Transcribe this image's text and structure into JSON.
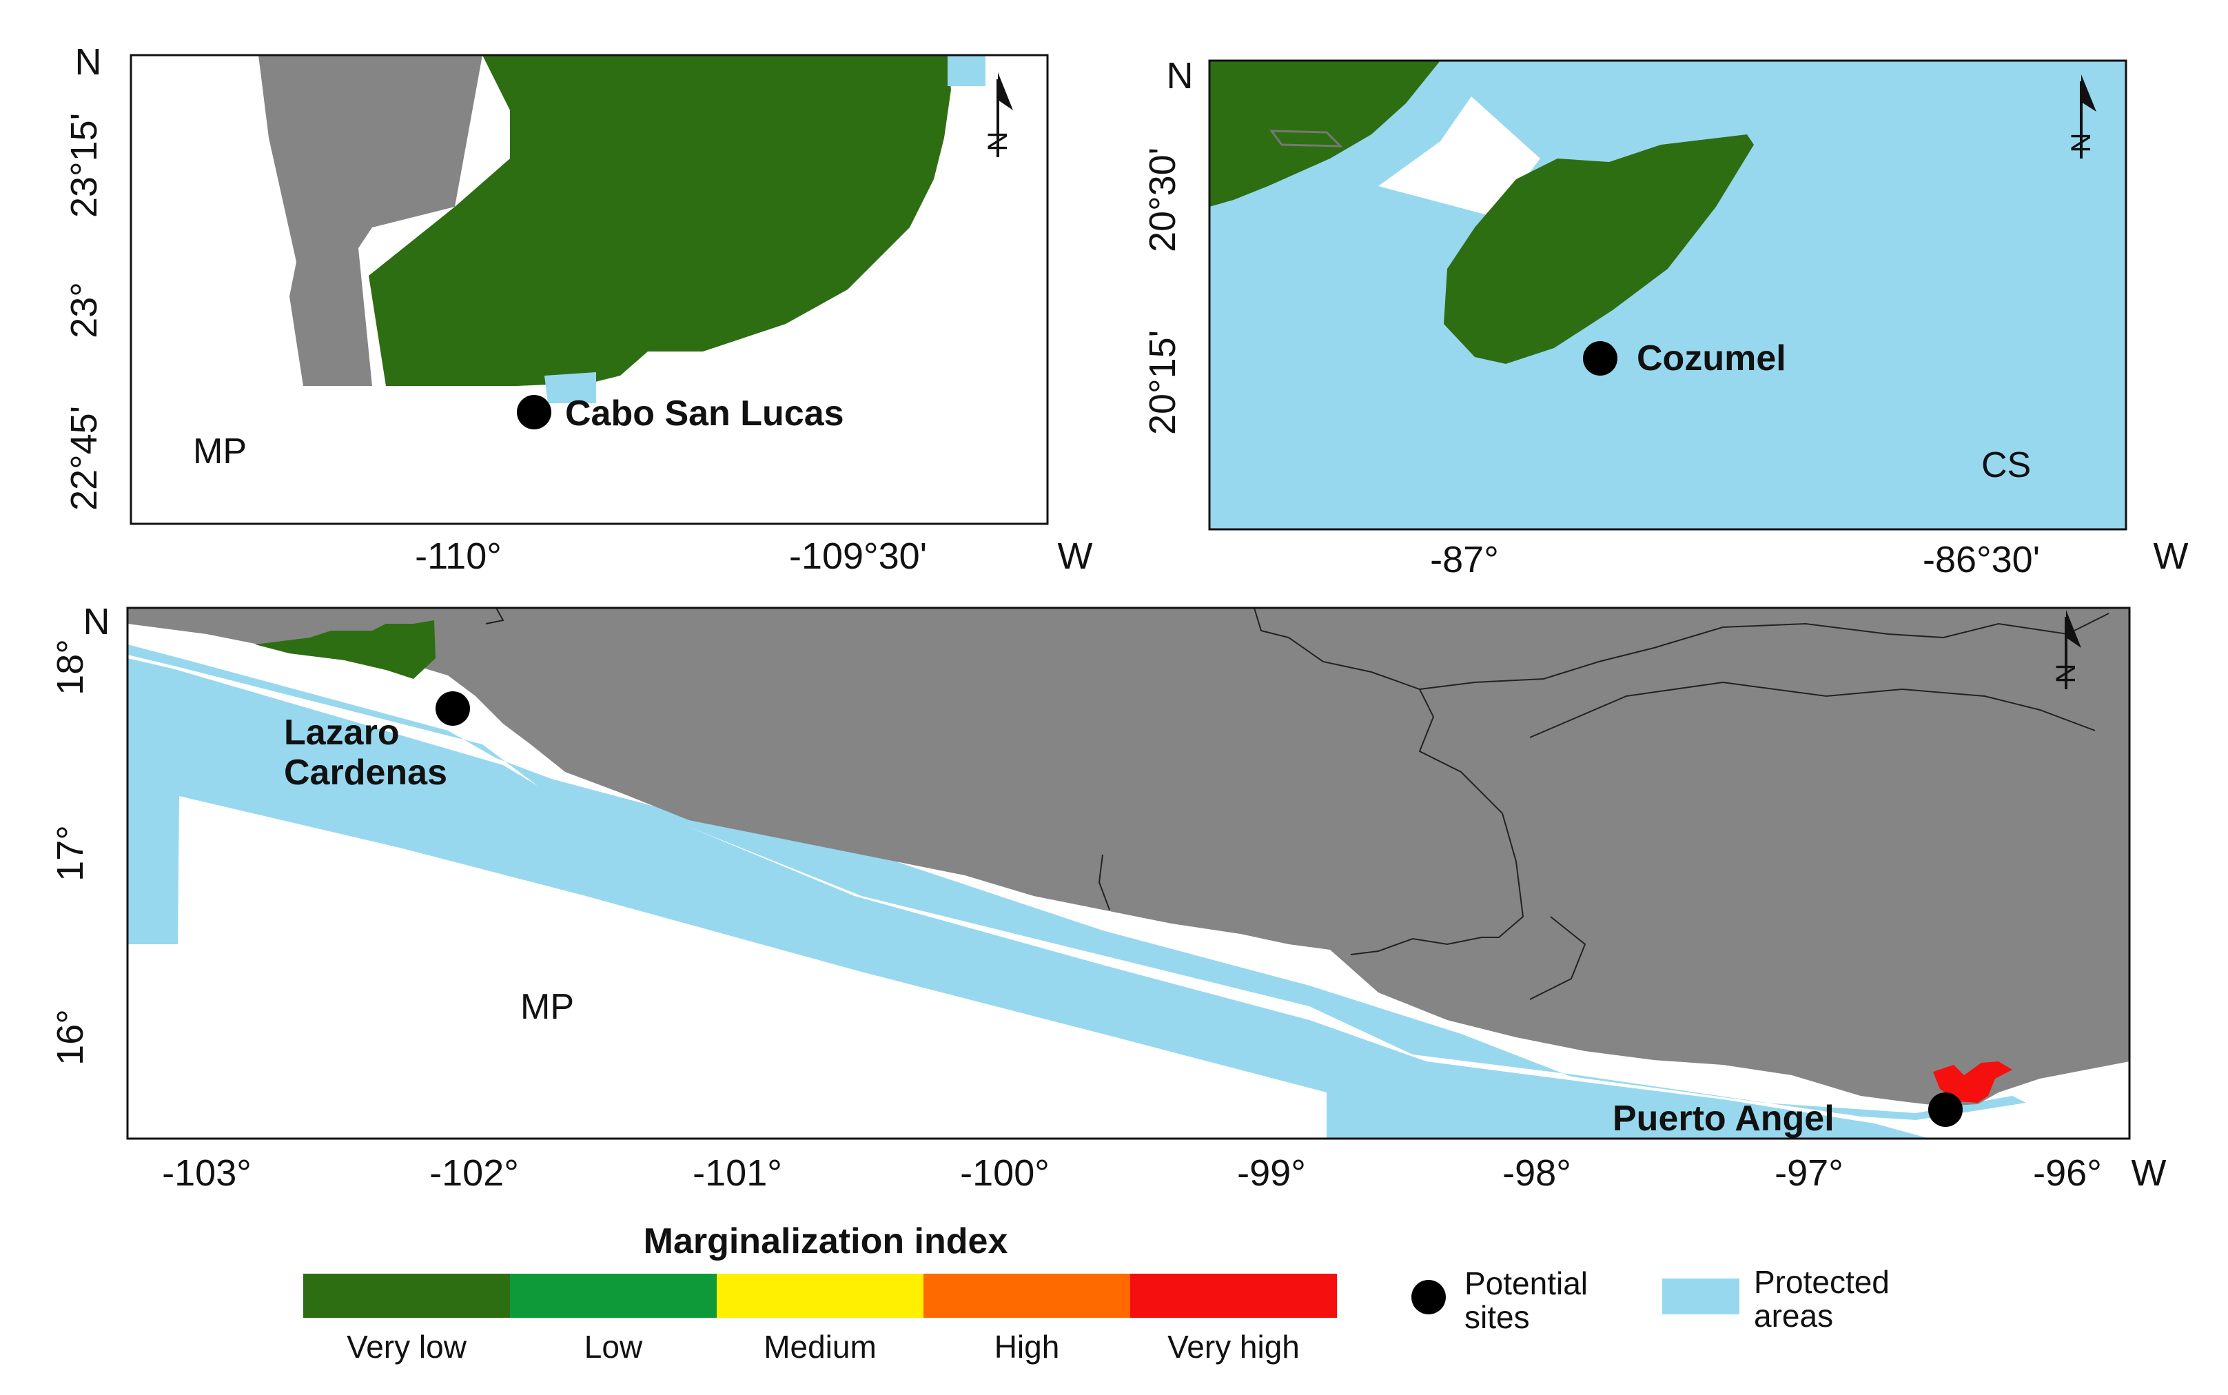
{
  "panels": {
    "top_left": {
      "corner_label": "MP",
      "site": "Cabo San Lucas",
      "north_label": "N",
      "x_ticks": [
        "-110°",
        "-109°30'"
      ],
      "x_axis_suffix": "W",
      "y_ticks": [
        "23°15'",
        "23°",
        "22°45'"
      ],
      "y_axis_suffix": "N"
    },
    "top_right": {
      "corner_label": "CS",
      "site": "Cozumel",
      "north_label": "N",
      "x_ticks": [
        "-87°",
        "-86°30'"
      ],
      "x_axis_suffix": "W",
      "y_ticks": [
        "20°30'",
        "20°15'"
      ],
      "y_axis_suffix": "N"
    },
    "bottom": {
      "corner_label": "MP",
      "sites": [
        "Lazaro",
        "Cardenas",
        "Puerto Angel"
      ],
      "north_label": "N",
      "x_ticks": [
        "-103°",
        "-102°",
        "-101°",
        "-100°",
        "-99°",
        "-98°",
        "-97°",
        "-96°"
      ],
      "x_axis_suffix": "W",
      "y_ticks": [
        "18°",
        "17°",
        "16°"
      ],
      "y_axis_suffix": "N"
    }
  },
  "legend": {
    "title": "Marginalization index",
    "classes": [
      {
        "label": "Very low",
        "color": "#2e6e12"
      },
      {
        "label": "Low",
        "color": "#0f9a3a"
      },
      {
        "label": "Medium",
        "color": "#ffef00"
      },
      {
        "label": "High",
        "color": "#ff6a00"
      },
      {
        "label": "Very high",
        "color": "#f50f0f"
      }
    ],
    "potential_sites": [
      "Potential",
      "sites"
    ],
    "protected_areas": [
      "Protected",
      "areas"
    ],
    "protected_color": "#97d8ef",
    "land_color": "#858585"
  }
}
